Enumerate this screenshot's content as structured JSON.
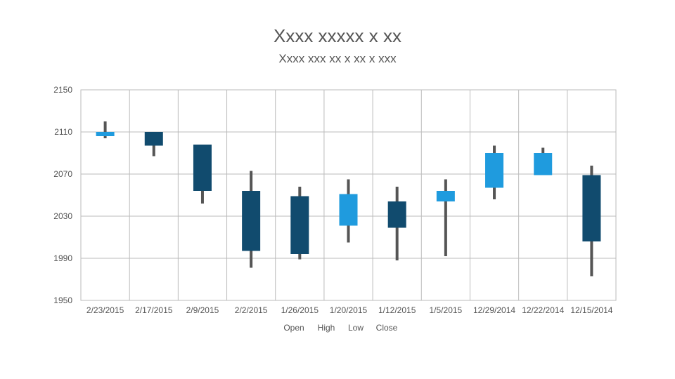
{
  "title": "Xxxx xxxxx x xx",
  "subtitle": "Xxxx xxx xx x xx x xxx",
  "chart_data": {
    "type": "candlestick",
    "ylim": [
      1950,
      2150
    ],
    "yticks": [
      1950,
      1990,
      2030,
      2070,
      2110,
      2150
    ],
    "grid": true,
    "legend_position": "bottom",
    "legend": [
      "Open",
      "High",
      "Low",
      "Close"
    ],
    "colors": {
      "up": "#1f9bde",
      "down": "#114b6e",
      "wick": "#555555",
      "grid": "#bbbbbb"
    },
    "categories": [
      "2/23/2015",
      "2/17/2015",
      "2/9/2015",
      "2/2/2015",
      "1/26/2015",
      "1/20/2015",
      "1/12/2015",
      "1/5/2015",
      "12/29/2014",
      "12/22/2014",
      "12/15/2014"
    ],
    "open": [
      2106,
      2110,
      2098,
      2054,
      2049,
      2021,
      2044,
      2044,
      2057,
      2069,
      2069
    ],
    "high": [
      2120,
      2110,
      2098,
      2073,
      2058,
      2065,
      2058,
      2065,
      2097,
      2095,
      2078
    ],
    "low": [
      2104,
      2087,
      2042,
      1981,
      1989,
      2005,
      1988,
      1992,
      2046,
      2069,
      1973
    ],
    "close": [
      2110,
      2097,
      2054,
      1997,
      1994,
      2051,
      2019,
      2054,
      2090,
      2090,
      2006
    ]
  }
}
